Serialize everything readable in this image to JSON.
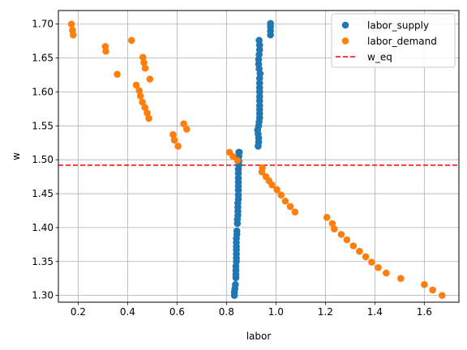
{
  "chart_data": {
    "type": "scatter",
    "title": "",
    "xlabel": "labor",
    "ylabel": "w",
    "xlim": [
      0.12,
      1.74
    ],
    "ylim": [
      1.29,
      1.72
    ],
    "xticks": [
      0.2,
      0.4,
      0.6,
      0.8,
      1.0,
      1.2,
      1.4,
      1.6
    ],
    "xtick_labels": [
      "0.2",
      "0.4",
      "0.6",
      "0.8",
      "1.0",
      "1.2",
      "1.4",
      "1.6"
    ],
    "yticks": [
      1.3,
      1.35,
      1.4,
      1.45,
      1.5,
      1.55,
      1.6,
      1.65,
      1.7
    ],
    "ytick_labels": [
      "1.30",
      "1.35",
      "1.40",
      "1.45",
      "1.50",
      "1.55",
      "1.60",
      "1.65",
      "1.70"
    ],
    "grid": true,
    "legend_position": "top-right",
    "series": [
      {
        "name": "labor_supply",
        "color": "#1f77b4",
        "marker": "circle",
        "points": [
          [
            0.832,
            1.3
          ],
          [
            0.832,
            1.305
          ],
          [
            0.834,
            1.31
          ],
          [
            0.836,
            1.316
          ],
          [
            0.838,
            1.326
          ],
          [
            0.838,
            1.331
          ],
          [
            0.838,
            1.337
          ],
          [
            0.838,
            1.343
          ],
          [
            0.84,
            1.35
          ],
          [
            0.84,
            1.355
          ],
          [
            0.84,
            1.361
          ],
          [
            0.84,
            1.367
          ],
          [
            0.84,
            1.372
          ],
          [
            0.84,
            1.378
          ],
          [
            0.84,
            1.384
          ],
          [
            0.842,
            1.39
          ],
          [
            0.842,
            1.395
          ],
          [
            0.844,
            1.406
          ],
          [
            0.844,
            1.412
          ],
          [
            0.846,
            1.418
          ],
          [
            0.846,
            1.424
          ],
          [
            0.846,
            1.43
          ],
          [
            0.846,
            1.436
          ],
          [
            0.848,
            1.442
          ],
          [
            0.848,
            1.448
          ],
          [
            0.848,
            1.455
          ],
          [
            0.848,
            1.461
          ],
          [
            0.848,
            1.467
          ],
          [
            0.848,
            1.473
          ],
          [
            0.848,
            1.48
          ],
          [
            0.848,
            1.486
          ],
          [
            0.85,
            1.492
          ],
          [
            0.85,
            1.498
          ],
          [
            0.85,
            1.505
          ],
          [
            0.85,
            1.511
          ],
          [
            0.852,
            1.511
          ],
          [
            0.928,
            1.52
          ],
          [
            0.93,
            1.526
          ],
          [
            0.93,
            1.532
          ],
          [
            0.928,
            1.538
          ],
          [
            0.926,
            1.544
          ],
          [
            0.93,
            1.55
          ],
          [
            0.932,
            1.556
          ],
          [
            0.934,
            1.562
          ],
          [
            0.934,
            1.568
          ],
          [
            0.934,
            1.574
          ],
          [
            0.934,
            1.58
          ],
          [
            0.934,
            1.587
          ],
          [
            0.934,
            1.593
          ],
          [
            0.934,
            1.6
          ],
          [
            0.934,
            1.606
          ],
          [
            0.934,
            1.613
          ],
          [
            0.934,
            1.62
          ],
          [
            0.936,
            1.627
          ],
          [
            0.932,
            1.634
          ],
          [
            0.93,
            1.641
          ],
          [
            0.93,
            1.648
          ],
          [
            0.932,
            1.655
          ],
          [
            0.934,
            1.662
          ],
          [
            0.934,
            1.669
          ],
          [
            0.932,
            1.676
          ],
          [
            0.978,
            1.684
          ],
          [
            0.978,
            1.69
          ],
          [
            0.978,
            1.696
          ],
          [
            0.978,
            1.701
          ]
        ]
      },
      {
        "name": "labor_demand",
        "color": "#ff7f0e",
        "marker": "circle",
        "points": [
          [
            0.173,
            1.7
          ],
          [
            0.177,
            1.691
          ],
          [
            0.18,
            1.684
          ],
          [
            0.31,
            1.667
          ],
          [
            0.312,
            1.66
          ],
          [
            0.358,
            1.626
          ],
          [
            0.416,
            1.676
          ],
          [
            0.462,
            1.651
          ],
          [
            0.466,
            1.643
          ],
          [
            0.471,
            1.635
          ],
          [
            0.49,
            1.619
          ],
          [
            0.435,
            1.61
          ],
          [
            0.447,
            1.602
          ],
          [
            0.452,
            1.594
          ],
          [
            0.46,
            1.585
          ],
          [
            0.47,
            1.577
          ],
          [
            0.479,
            1.569
          ],
          [
            0.486,
            1.561
          ],
          [
            0.584,
            1.537
          ],
          [
            0.589,
            1.529
          ],
          [
            0.604,
            1.52
          ],
          [
            0.627,
            1.553
          ],
          [
            0.639,
            1.545
          ],
          [
            0.812,
            1.511
          ],
          [
            0.826,
            1.505
          ],
          [
            0.844,
            1.499
          ],
          [
            0.945,
            1.488
          ],
          [
            0.943,
            1.482
          ],
          [
            0.96,
            1.475
          ],
          [
            0.972,
            1.469
          ],
          [
            0.984,
            1.463
          ],
          [
            1.004,
            1.456
          ],
          [
            1.021,
            1.448
          ],
          [
            1.038,
            1.439
          ],
          [
            1.058,
            1.431
          ],
          [
            1.077,
            1.423
          ],
          [
            1.206,
            1.415
          ],
          [
            1.228,
            1.406
          ],
          [
            1.236,
            1.398
          ],
          [
            1.264,
            1.39
          ],
          [
            1.287,
            1.382
          ],
          [
            1.313,
            1.373
          ],
          [
            1.338,
            1.365
          ],
          [
            1.363,
            1.357
          ],
          [
            1.387,
            1.349
          ],
          [
            1.414,
            1.341
          ],
          [
            1.446,
            1.333
          ],
          [
            1.505,
            1.325
          ],
          [
            1.6,
            1.316
          ],
          [
            1.634,
            1.308
          ],
          [
            1.672,
            1.3
          ]
        ]
      }
    ],
    "hlines": [
      {
        "name": "w_eq",
        "y": 1.492,
        "color": "#ff0000",
        "style": "dashed"
      }
    ]
  }
}
